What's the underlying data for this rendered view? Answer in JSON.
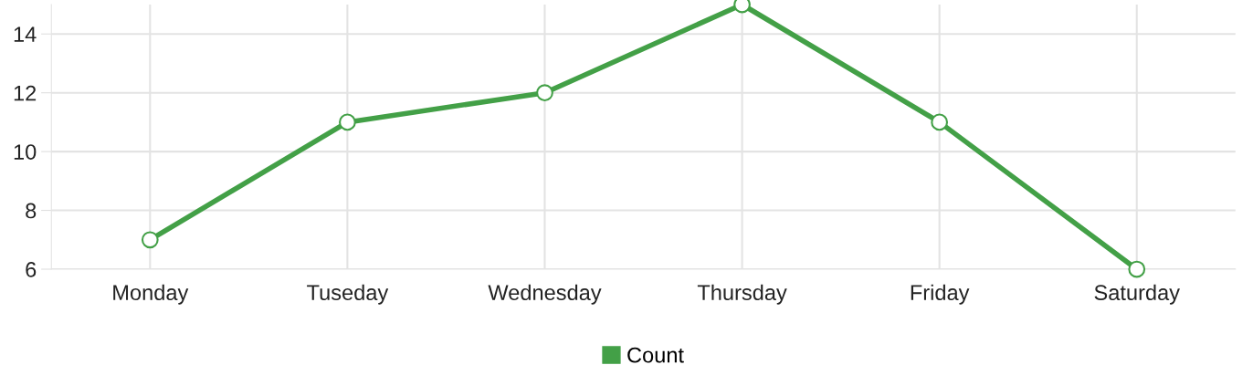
{
  "chart_data": {
    "type": "line",
    "categories": [
      "Monday",
      "Tuseday",
      "Wednesday",
      "Thursday",
      "Friday",
      "Saturday"
    ],
    "series": [
      {
        "name": "Count",
        "color": "#43a047",
        "values": [
          7,
          11,
          12,
          15,
          11,
          6
        ]
      }
    ],
    "ylim": [
      6,
      15
    ],
    "yticks": [
      6,
      8,
      10,
      12,
      14
    ],
    "grid": true,
    "legend": "bottom",
    "marker": "circle",
    "line_style": "solid"
  }
}
